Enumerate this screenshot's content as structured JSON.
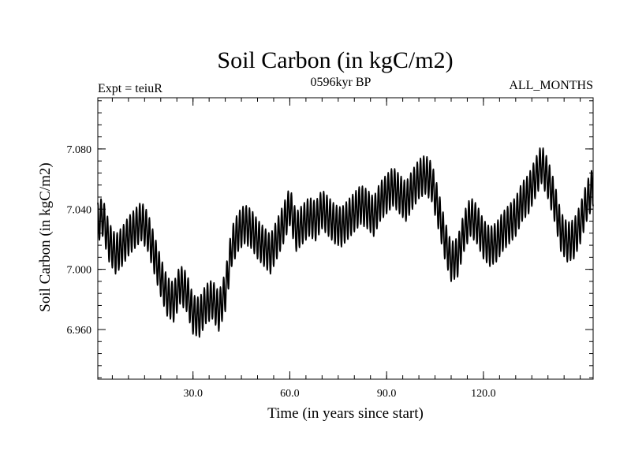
{
  "chart_data": {
    "type": "line",
    "title": "Soil Carbon (in kgC/m2)",
    "subtitle_left": "Expt = teiuR",
    "subtitle_center": "0596kyr BP",
    "subtitle_right": "ALL_MONTHS",
    "xlabel": "Time (in years since start)",
    "ylabel": "Soil Carbon (in kgC/m2)",
    "xlim": [
      0.5,
      154
    ],
    "ylim": [
      6.927,
      7.114
    ],
    "xticks": [
      30,
      60,
      90,
      120
    ],
    "xtick_labels": [
      "30.0",
      "60.0",
      "90.0",
      "120.0"
    ],
    "xminor_step": 5,
    "yticks": [
      6.96,
      7.0,
      7.04,
      7.08
    ],
    "ytick_labels": [
      "6.960",
      "7.000",
      "7.040",
      "7.080"
    ],
    "yminor_step": 0.008,
    "series": [
      {
        "name": "Soil Carbon",
        "note": "monthly values; seasonal cycle amplitude ~0.013 kgC/m2 around the annual means below",
        "seasonal_amplitude": 0.013,
        "annual_x": [
          0,
          2,
          4,
          6,
          8,
          10,
          12,
          14,
          16,
          18,
          20,
          22,
          24,
          26,
          28,
          30,
          32,
          34,
          36,
          38,
          40,
          42,
          44,
          46,
          48,
          50,
          52,
          54,
          56,
          58,
          60,
          62,
          64,
          66,
          68,
          70,
          72,
          74,
          76,
          78,
          80,
          82,
          84,
          86,
          88,
          90,
          92,
          94,
          96,
          98,
          100,
          102,
          104,
          106,
          108,
          110,
          112,
          114,
          116,
          118,
          120,
          122,
          124,
          126,
          128,
          130,
          132,
          134,
          136,
          138,
          140,
          142,
          144,
          146,
          148,
          150,
          152,
          154
        ],
        "annual_mean": [
          7.03,
          7.035,
          7.018,
          7.01,
          7.015,
          7.022,
          7.027,
          7.032,
          7.025,
          7.01,
          6.995,
          6.982,
          6.978,
          6.99,
          6.985,
          6.97,
          6.968,
          6.977,
          6.98,
          6.972,
          6.985,
          7.015,
          7.025,
          7.03,
          7.027,
          7.02,
          7.015,
          7.01,
          7.02,
          7.03,
          7.042,
          7.025,
          7.03,
          7.035,
          7.032,
          7.04,
          7.035,
          7.03,
          7.028,
          7.033,
          7.038,
          7.043,
          7.04,
          7.035,
          7.045,
          7.05,
          7.055,
          7.05,
          7.045,
          7.053,
          7.06,
          7.063,
          7.058,
          7.04,
          7.02,
          7.005,
          7.008,
          7.025,
          7.035,
          7.03,
          7.02,
          7.015,
          7.018,
          7.025,
          7.03,
          7.035,
          7.045,
          7.05,
          7.06,
          7.07,
          7.06,
          7.045,
          7.025,
          7.018,
          7.02,
          7.03,
          7.045,
          7.055
        ]
      }
    ]
  }
}
